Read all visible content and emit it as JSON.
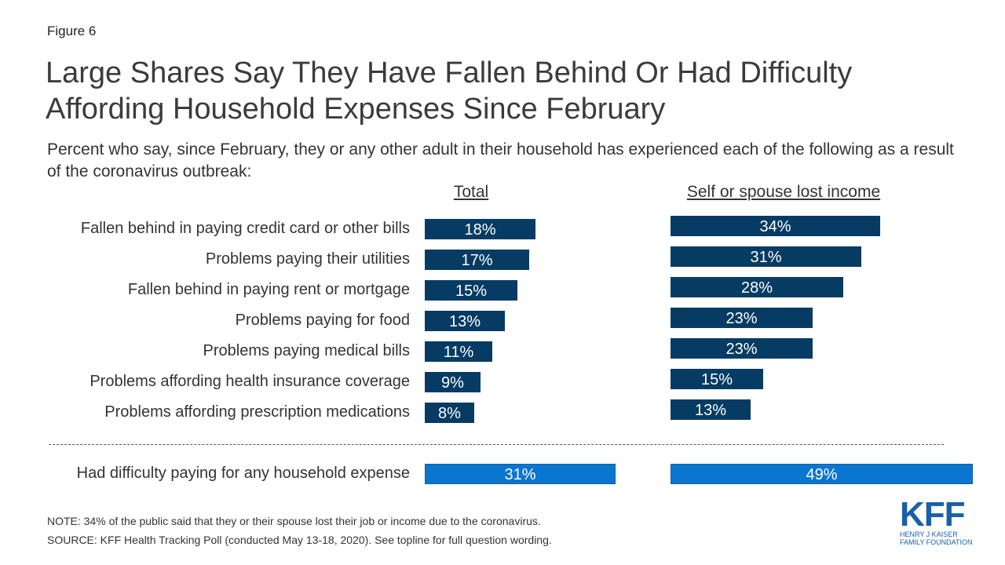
{
  "figure_label": "Figure 6",
  "title": "Large Shares Say They Have Fallen Behind Or Had Difficulty Affording Household Expenses Since February",
  "subtitle": "Percent who say, since February, they or any other adult in their household has experienced each of the following as a result of the coronavirus outbreak:",
  "chart_data": {
    "type": "bar",
    "orientation": "horizontal",
    "title": "Large Shares Say They Have Fallen Behind Or Had Difficulty Affording Household Expenses Since February",
    "categories": [
      "Fallen behind in paying credit card or other bills",
      "Problems paying their utilities",
      "Fallen behind in paying rent or mortgage",
      "Problems paying for food",
      "Problems paying medical bills",
      "Problems affording health insurance coverage",
      "Problems affording prescription medications"
    ],
    "series": [
      {
        "name": "Total",
        "values": [
          18,
          17,
          15,
          13,
          11,
          9,
          8
        ],
        "labels": [
          "18%",
          "17%",
          "15%",
          "13%",
          "11%",
          "9%",
          "8%"
        ],
        "color": "#063b63"
      },
      {
        "name": "Self or spouse lost income",
        "values": [
          34,
          31,
          28,
          23,
          23,
          15,
          13
        ],
        "labels": [
          "34%",
          "31%",
          "28%",
          "23%",
          "23%",
          "15%",
          "13%"
        ],
        "color": "#063b63"
      }
    ],
    "summary": {
      "label": "Had difficulty paying for any household expense",
      "values": [
        31,
        49
      ],
      "labels": [
        "31%",
        "49%"
      ],
      "color": "#0b76cf"
    },
    "xlabel": "",
    "ylabel": "",
    "unit": "%"
  },
  "note": "NOTE: 34% of the public said that they or their spouse lost their job or income due to the coronavirus.",
  "source": "SOURCE: KFF Health Tracking Poll (conducted May 13-18, 2020). See topline for full question wording.",
  "logo": {
    "mark": "KFF",
    "line1": "HENRY J KAISER",
    "line2": "FAMILY FOUNDATION"
  }
}
